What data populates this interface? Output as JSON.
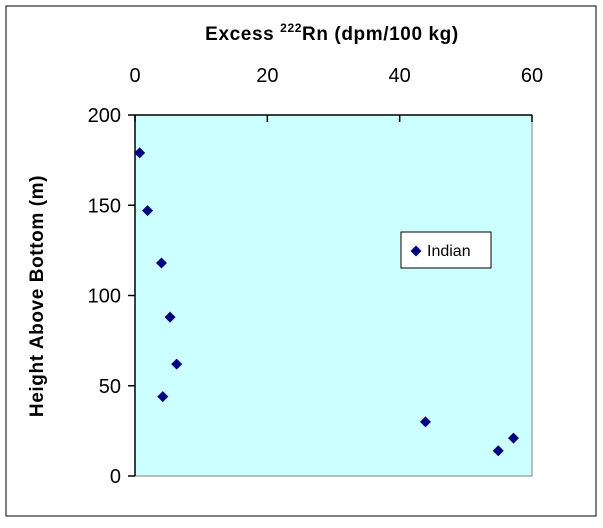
{
  "chart_data": {
    "type": "scatter",
    "title": "",
    "xlabel": {
      "prefix": "Excess ",
      "superscript": "222",
      "suffix": "Rn (dpm/100 kg)"
    },
    "ylabel": "Height Above Bottom (m)",
    "x_axis_position": "top",
    "xlim": [
      0,
      60
    ],
    "ylim": [
      0,
      200
    ],
    "x_ticks": [
      0,
      20,
      40,
      60
    ],
    "y_ticks": [
      0,
      50,
      100,
      150,
      200
    ],
    "grid": false,
    "plot_background": "#ccffff",
    "marker_color": "#000080",
    "marker": "diamond",
    "legend_position": "right-middle",
    "series": [
      {
        "name": "Indian",
        "points": [
          {
            "x": 0.7,
            "y": 179
          },
          {
            "x": 1.9,
            "y": 147
          },
          {
            "x": 4.0,
            "y": 118
          },
          {
            "x": 5.3,
            "y": 88
          },
          {
            "x": 6.3,
            "y": 62
          },
          {
            "x": 4.2,
            "y": 44
          },
          {
            "x": 43.9,
            "y": 30
          },
          {
            "x": 54.9,
            "y": 14
          },
          {
            "x": 57.2,
            "y": 21
          }
        ]
      }
    ]
  }
}
